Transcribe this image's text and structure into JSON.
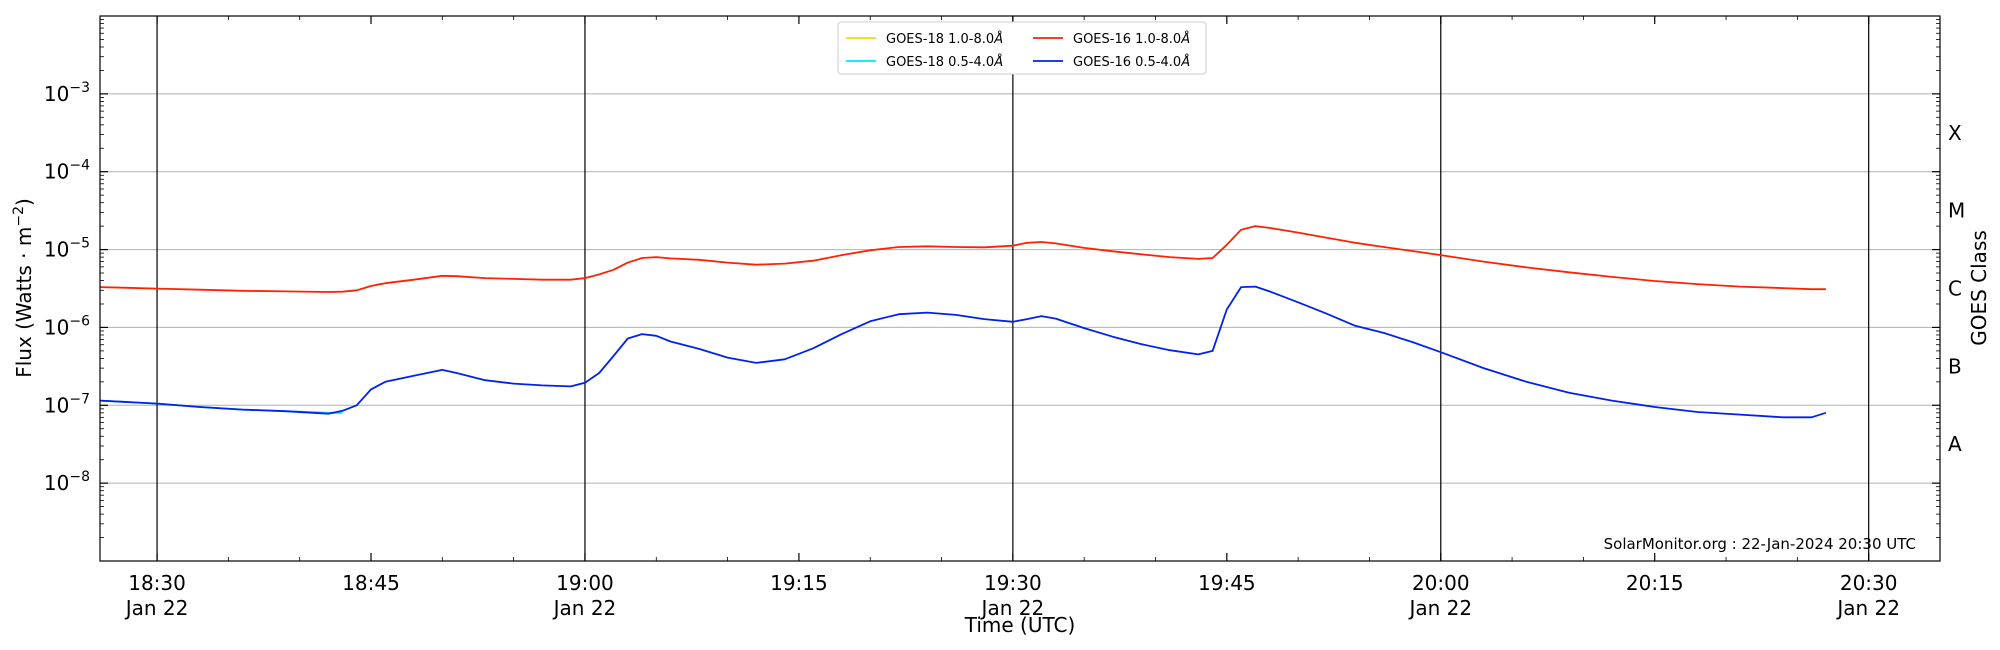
{
  "chart_data": {
    "type": "line",
    "title": "",
    "xlabel": "Time (UTC)",
    "ylabel": "Flux (Watts · m",
    "ylabel_superscript": "−2",
    "ylabel_close": ")",
    "right_ylabel": "GOES Class",
    "y_scale": "log",
    "ylim": [
      1e-09,
      0.01
    ],
    "xlim": [
      "18:26",
      "20:35"
    ],
    "grid": "horizontal",
    "legend_position": "top-center",
    "credit": "SolarMonitor.org : 22-Jan-2024 20:30 UTC",
    "y_ticks": [
      {
        "value": 1e-08,
        "base": "10",
        "exp": "−8"
      },
      {
        "value": 1e-07,
        "base": "10",
        "exp": "−7"
      },
      {
        "value": 1e-06,
        "base": "10",
        "exp": "−6"
      },
      {
        "value": 1e-05,
        "base": "10",
        "exp": "−5"
      },
      {
        "value": 0.0001,
        "base": "10",
        "exp": "−4"
      },
      {
        "value": 0.001,
        "base": "10",
        "exp": "−3"
      }
    ],
    "x_ticks": [
      {
        "time": "18:30",
        "label": "18:30",
        "sublabel": "Jan 22",
        "vline": true
      },
      {
        "time": "18:45",
        "label": "18:45",
        "sublabel": "",
        "vline": false
      },
      {
        "time": "19:00",
        "label": "19:00",
        "sublabel": "Jan 22",
        "vline": true
      },
      {
        "time": "19:15",
        "label": "19:15",
        "sublabel": "",
        "vline": false
      },
      {
        "time": "19:30",
        "label": "19:30",
        "sublabel": "Jan 22",
        "vline": true
      },
      {
        "time": "19:45",
        "label": "19:45",
        "sublabel": "",
        "vline": false
      },
      {
        "time": "20:00",
        "label": "20:00",
        "sublabel": "Jan 22",
        "vline": true
      },
      {
        "time": "20:15",
        "label": "20:15",
        "sublabel": "",
        "vline": false
      },
      {
        "time": "20:30",
        "label": "20:30",
        "sublabel": "Jan 22",
        "vline": true
      }
    ],
    "goes_classes": [
      {
        "label": "A",
        "value": 3.16e-08
      },
      {
        "label": "B",
        "value": 3.16e-07
      },
      {
        "label": "C",
        "value": 3.16e-06
      },
      {
        "label": "M",
        "value": 3.16e-05
      },
      {
        "label": "X",
        "value": 0.000316
      }
    ],
    "series": [
      {
        "name": "GOES-18 1.0-8.0",
        "unit": "Å",
        "color": "#ffd700",
        "x": [],
        "y": []
      },
      {
        "name": "GOES-18 0.5-4.0",
        "unit": "Å",
        "color": "#00e5ff",
        "x": [
          "18:26",
          "18:30",
          "18:33",
          "18:36",
          "18:39",
          "18:42",
          "18:43"
        ],
        "y": [
          1.15e-07,
          1.05e-07,
          9.5e-08,
          8.8e-08,
          8.4e-08,
          8e-08,
          8e-08
        ]
      },
      {
        "name": "GOES-16 1.0-8.0",
        "unit": "Å",
        "color": "#ff2200",
        "x": [
          "18:26",
          "18:30",
          "18:33",
          "18:36",
          "18:39",
          "18:42",
          "18:43",
          "18:44",
          "18:45",
          "18:46",
          "18:48",
          "18:50",
          "18:51",
          "18:53",
          "18:55",
          "18:57",
          "18:59",
          "19:00",
          "19:01",
          "19:02",
          "19:03",
          "19:04",
          "19:05",
          "19:06",
          "19:08",
          "19:10",
          "19:12",
          "19:14",
          "19:16",
          "19:18",
          "19:20",
          "19:22",
          "19:24",
          "19:26",
          "19:28",
          "19:30",
          "19:31",
          "19:32",
          "19:33",
          "19:35",
          "19:37",
          "19:39",
          "19:41",
          "19:43",
          "19:44",
          "19:45",
          "19:46",
          "19:47",
          "19:48",
          "19:50",
          "19:52",
          "19:54",
          "19:56",
          "19:58",
          "20:00",
          "20:03",
          "20:06",
          "20:09",
          "20:12",
          "20:15",
          "20:18",
          "20:21",
          "20:24",
          "20:26",
          "20:27"
        ],
        "y": [
          3.3e-06,
          3.15e-06,
          3.05e-06,
          2.95e-06,
          2.9e-06,
          2.85e-06,
          2.88e-06,
          3e-06,
          3.4e-06,
          3.7e-06,
          4.1e-06,
          4.6e-06,
          4.55e-06,
          4.3e-06,
          4.2e-06,
          4.1e-06,
          4.1e-06,
          4.3e-06,
          4.8e-06,
          5.5e-06,
          6.8e-06,
          7.8e-06,
          8e-06,
          7.7e-06,
          7.4e-06,
          6.8e-06,
          6.4e-06,
          6.6e-06,
          7.2e-06,
          8.5e-06,
          9.8e-06,
          1.08e-05,
          1.1e-05,
          1.08e-05,
          1.07e-05,
          1.12e-05,
          1.22e-05,
          1.25e-05,
          1.2e-05,
          1.05e-05,
          9.5e-06,
          8.7e-06,
          8e-06,
          7.6e-06,
          7.8e-06,
          1.15e-05,
          1.8e-05,
          2e-05,
          1.9e-05,
          1.65e-05,
          1.42e-05,
          1.22e-05,
          1.08e-05,
          9.6e-06,
          8.5e-06,
          7e-06,
          5.9e-06,
          5.1e-06,
          4.45e-06,
          3.95e-06,
          3.6e-06,
          3.35e-06,
          3.2e-06,
          3.1e-06,
          3.1e-06
        ]
      },
      {
        "name": "GOES-16 0.5-4.0",
        "unit": "Å",
        "color": "#0022ee",
        "x": [
          "18:26",
          "18:30",
          "18:33",
          "18:36",
          "18:39",
          "18:42",
          "18:43",
          "18:44",
          "18:45",
          "18:46",
          "18:48",
          "18:50",
          "18:51",
          "18:53",
          "18:55",
          "18:57",
          "18:59",
          "19:00",
          "19:01",
          "19:02",
          "19:03",
          "19:04",
          "19:05",
          "19:06",
          "19:08",
          "19:10",
          "19:12",
          "19:14",
          "19:16",
          "19:18",
          "19:20",
          "19:22",
          "19:24",
          "19:26",
          "19:28",
          "19:30",
          "19:31",
          "19:32",
          "19:33",
          "19:35",
          "19:37",
          "19:39",
          "19:41",
          "19:43",
          "19:44",
          "19:45",
          "19:46",
          "19:47",
          "19:48",
          "19:50",
          "19:52",
          "19:54",
          "19:56",
          "19:58",
          "20:00",
          "20:03",
          "20:06",
          "20:09",
          "20:12",
          "20:15",
          "20:18",
          "20:21",
          "20:24",
          "20:26",
          "20:27"
        ],
        "y": [
          1.15e-07,
          1.05e-07,
          9.5e-08,
          8.8e-08,
          8.4e-08,
          7.8e-08,
          8.5e-08,
          1e-07,
          1.6e-07,
          2e-07,
          2.4e-07,
          2.85e-07,
          2.6e-07,
          2.1e-07,
          1.9e-07,
          1.8e-07,
          1.75e-07,
          1.95e-07,
          2.6e-07,
          4.3e-07,
          7.2e-07,
          8.2e-07,
          7.8e-07,
          6.6e-07,
          5.3e-07,
          4.1e-07,
          3.5e-07,
          3.9e-07,
          5.4e-07,
          8.2e-07,
          1.2e-06,
          1.48e-06,
          1.55e-06,
          1.45e-06,
          1.28e-06,
          1.18e-06,
          1.28e-06,
          1.4e-06,
          1.3e-06,
          9.8e-07,
          7.6e-07,
          6.1e-07,
          5.1e-07,
          4.5e-07,
          5e-07,
          1.7e-06,
          3.3e-06,
          3.35e-06,
          2.9e-06,
          2.1e-06,
          1.5e-06,
          1.05e-06,
          8.5e-07,
          6.5e-07,
          4.8e-07,
          3e-07,
          2e-07,
          1.45e-07,
          1.15e-07,
          9.5e-08,
          8.2e-08,
          7.6e-08,
          7e-08,
          7e-08,
          8e-08
        ]
      }
    ],
    "legend_order": [
      0,
      1,
      2,
      3
    ]
  }
}
